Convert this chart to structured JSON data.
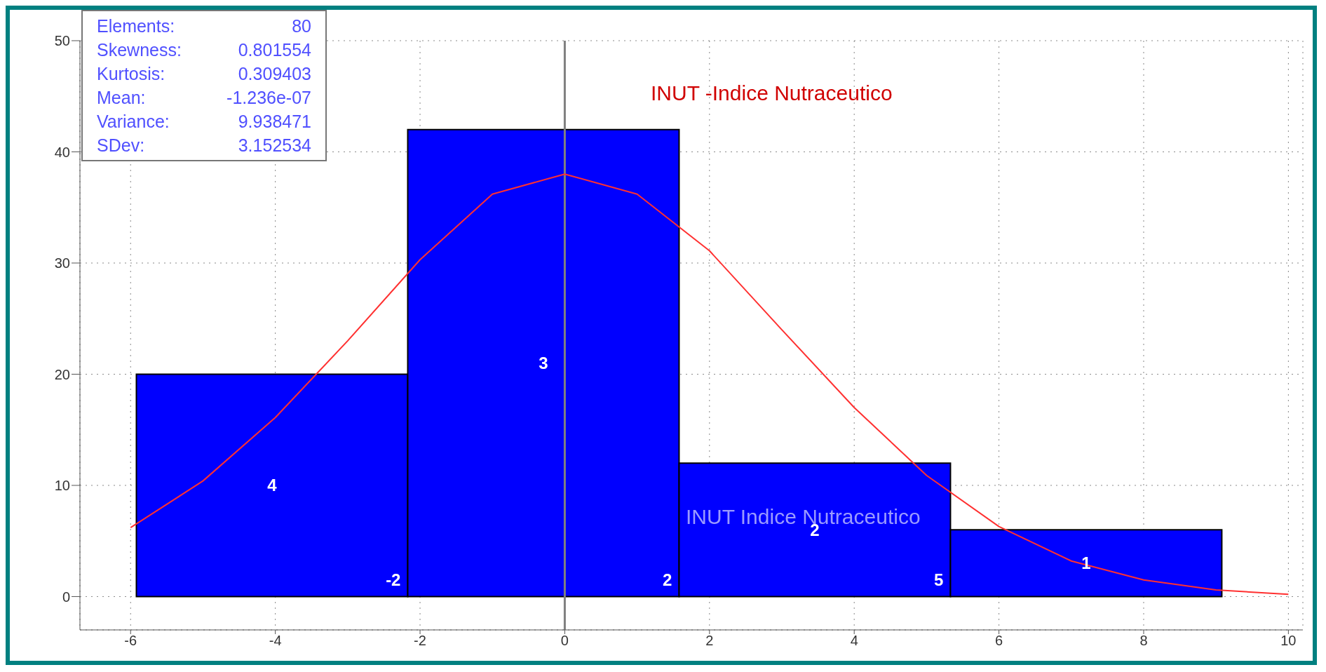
{
  "chart_data": {
    "type": "histogram",
    "title": "INUT -Indice Nutraceutico",
    "bins": [
      -5.92,
      -2.17,
      1.58,
      5.33,
      9.08
    ],
    "values": [
      20,
      42,
      12,
      6
    ],
    "color": "#0000ff",
    "series": [
      {
        "type": "line",
        "color": "#ff3030",
        "x": [
          -6,
          -5,
          -4,
          -3,
          -2,
          -1,
          0,
          1,
          2,
          3,
          4,
          5,
          6,
          7,
          8,
          9,
          10
        ],
        "values": [
          6.2,
          10.4,
          16.1,
          23.0,
          30.3,
          36.2,
          38.0,
          36.2,
          31.1,
          24.0,
          17.0,
          10.9,
          6.3,
          3.2,
          1.5,
          0.6,
          0.2
        ]
      }
    ],
    "xlim": [
      -6.7,
      10.2
    ],
    "xticks": [
      -6,
      -4,
      -2,
      0,
      2,
      4,
      6,
      8,
      10
    ],
    "ylim": [
      -3,
      50
    ],
    "yticks": [
      0,
      10,
      20,
      30,
      40,
      50
    ],
    "grid": true,
    "marker": "none",
    "line_style": "solid",
    "ref_lines": [
      {
        "axis": "x",
        "value": 0,
        "color": "#808080"
      }
    ],
    "annotations": [
      "Elements:",
      "80",
      "Skewness:",
      "0.801554",
      "Kurtosis:",
      "0.309403",
      "Mean:",
      "-1.236e-07",
      "Variance:",
      "9.938471",
      "SDev:",
      "3.152534",
      "INUT Indice Nutraceutico",
      "4",
      "3",
      "2",
      "1",
      "-2",
      "2",
      "5"
    ]
  }
}
